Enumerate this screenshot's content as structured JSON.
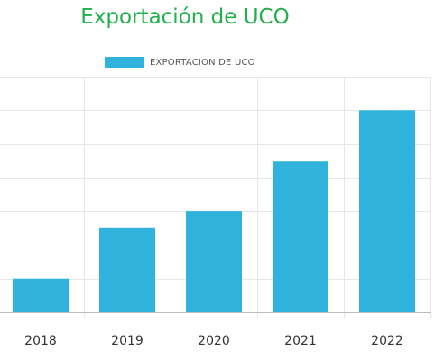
{
  "chart_data": {
    "type": "bar",
    "title": "Exportación de UCO",
    "categories": [
      "2018",
      "2019",
      "2020",
      "2021",
      "2022"
    ],
    "series": [
      {
        "name": "EXPORTACION DE UCO",
        "values": [
          1,
          2.5,
          3,
          4.5,
          6
        ]
      }
    ],
    "xlabel": "",
    "ylabel": "",
    "ylim": [
      0,
      7
    ],
    "grid": true,
    "legend": "top",
    "colors": {
      "bar": "#2fb3dc",
      "title": "#21b04b",
      "grid": "#e6e6e6",
      "axis": "#bdbdbd"
    }
  }
}
